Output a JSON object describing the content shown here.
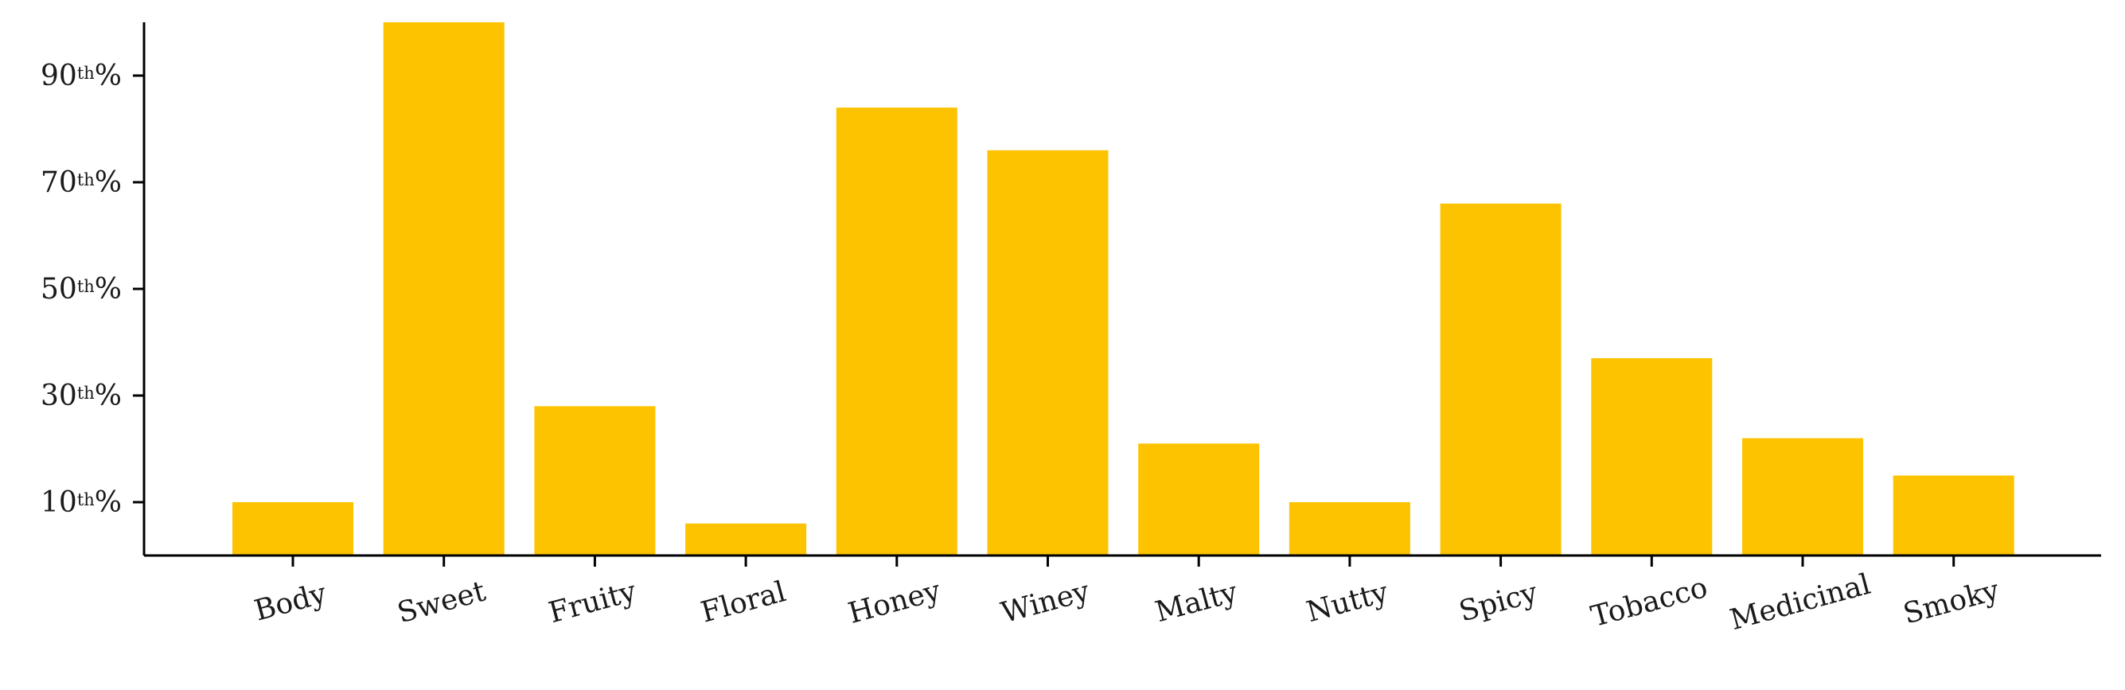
{
  "chart_data": {
    "type": "bar",
    "title": "",
    "xlabel": "",
    "ylabel": "",
    "categories": [
      "Body",
      "Sweet",
      "Fruity",
      "Floral",
      "Honey",
      "Winey",
      "Malty",
      "Nutty",
      "Spicy",
      "Tobacco",
      "Medicinal",
      "Smoky"
    ],
    "values": [
      0.1,
      1.0,
      0.28,
      0.06,
      0.84,
      0.76,
      0.21,
      0.1,
      0.66,
      0.37,
      0.22,
      0.15
    ],
    "ylim": [
      0,
      1.0
    ],
    "yticks": [
      {
        "value": 0.1,
        "number": "10",
        "suffix": "th",
        "unit": "%"
      },
      {
        "value": 0.3,
        "number": "30",
        "suffix": "th",
        "unit": "%"
      },
      {
        "value": 0.5,
        "number": "50",
        "suffix": "th",
        "unit": "%"
      },
      {
        "value": 0.7,
        "number": "70",
        "suffix": "th",
        "unit": "%"
      },
      {
        "value": 0.9,
        "number": "90",
        "suffix": "th",
        "unit": "%"
      }
    ],
    "bar_color": "#fdc300",
    "grid": false,
    "legend": "none"
  }
}
